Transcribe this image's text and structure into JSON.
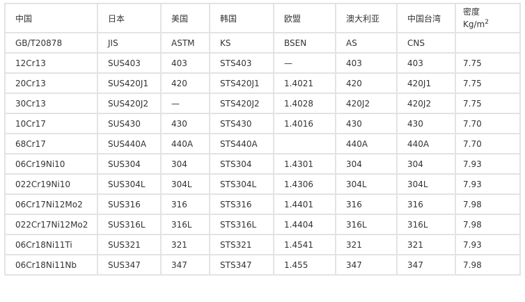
{
  "headers": [
    "中国",
    "日本",
    "美国",
    "韩国",
    "欧盟",
    "澳大利亚",
    "中国台湾"
  ],
  "density_header": {
    "line1": "密度",
    "unit": "Kg/m",
    "sup": "2"
  },
  "rows": [
    [
      "GB/T20878",
      "JIS",
      "ASTM",
      "KS",
      "BSEN",
      "AS",
      "CNS",
      ""
    ],
    [
      "12Cr13",
      "SUS403",
      "403",
      "STS403",
      "—",
      "403",
      "403",
      "7.75"
    ],
    [
      "20Cr13",
      "SUS420J1",
      "420",
      "STS420J1",
      "1.4021",
      "420",
      "420J1",
      "7.75"
    ],
    [
      "30Cr13",
      "SUS420J2",
      "—",
      "STS420J2",
      "1.4028",
      "420J2",
      "420J2",
      "7.75"
    ],
    [
      "10Cr17",
      "SUS430",
      "430",
      "STS430",
      "1.4016",
      "430",
      "430",
      "7.70"
    ],
    [
      "68Cr17",
      "SUS440A",
      "440A",
      "STS440A",
      "",
      "440A",
      "440A",
      "7.70"
    ],
    [
      "06Cr19Ni10",
      "SUS304",
      "304",
      "STS304",
      "1.4301",
      "304",
      "304",
      "7.93"
    ],
    [
      "022Cr19Ni10",
      "SUS304L",
      "304L",
      "STS304L",
      "1.4306",
      "304L",
      "304L",
      "7.93"
    ],
    [
      "06Cr17Ni12Mo2",
      "SUS316",
      "316",
      "STS316",
      "1.4401",
      "316",
      "316",
      "7.98"
    ],
    [
      "022Cr17Ni12Mo2",
      "SUS316L",
      "316L",
      "STS316L",
      "1.4404",
      "316L",
      "316L",
      "7.98"
    ],
    [
      "06Cr18Ni11Ti",
      "SUS321",
      "321",
      "STS321",
      "1.4541",
      "321",
      "321",
      "7.93"
    ],
    [
      "06Cr18Ni11Nb",
      "SUS347",
      "347",
      "STS347",
      "1.455",
      "347",
      "347",
      "7.98"
    ]
  ]
}
